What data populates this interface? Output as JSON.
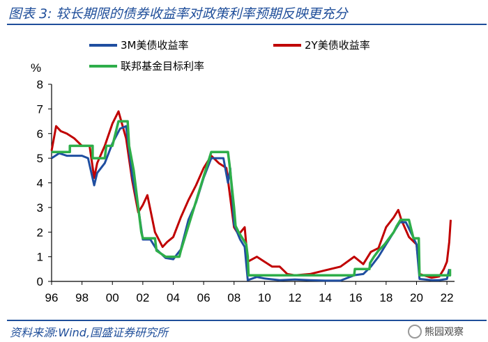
{
  "header": {
    "title": "图表 3:  较长期限的债券收益率对政策利率预期反映更充分"
  },
  "footer": {
    "source": "资料来源:Wind,国盛证券研究所",
    "watermark": "熊园观察"
  },
  "colors": {
    "series_3m": "#1f4ea0",
    "series_2y": "#c00000",
    "series_ff": "#2eae4a",
    "title": "#1f4e9a"
  },
  "chart_data": {
    "type": "line",
    "ylabel": "%",
    "ylim": [
      0,
      8
    ],
    "yticks": [
      "0",
      "1",
      "2",
      "3",
      "4",
      "5",
      "6",
      "7",
      "8"
    ],
    "xlim": [
      1996,
      2022.5
    ],
    "xticks": [
      "96",
      "98",
      "00",
      "02",
      "04",
      "06",
      "08",
      "10",
      "12",
      "14",
      "16",
      "18",
      "20",
      "22"
    ],
    "legend": [
      "3M美债收益率",
      "2Y美债收益率",
      "联邦基金目标利率"
    ],
    "legend_position": "top",
    "series": [
      {
        "name": "3M美债收益率",
        "points": [
          [
            1996,
            5.0
          ],
          [
            1996.5,
            5.2
          ],
          [
            1997,
            5.1
          ],
          [
            1997.5,
            5.1
          ],
          [
            1998,
            5.1
          ],
          [
            1998.4,
            5.0
          ],
          [
            1998.8,
            3.9
          ],
          [
            1999,
            4.4
          ],
          [
            1999.5,
            4.8
          ],
          [
            2000,
            5.6
          ],
          [
            2000.5,
            6.2
          ],
          [
            2000.9,
            6.3
          ],
          [
            2001.3,
            4.3
          ],
          [
            2001.7,
            3.0
          ],
          [
            2002,
            1.7
          ],
          [
            2002.5,
            1.7
          ],
          [
            2002.9,
            1.3
          ],
          [
            2003.5,
            0.95
          ],
          [
            2004,
            0.9
          ],
          [
            2004.5,
            1.3
          ],
          [
            2005,
            2.5
          ],
          [
            2005.5,
            3.2
          ],
          [
            2006,
            4.2
          ],
          [
            2006.5,
            5.0
          ],
          [
            2007,
            5.0
          ],
          [
            2007.3,
            5.0
          ],
          [
            2007.6,
            4.0
          ],
          [
            2007.75,
            4.6
          ],
          [
            2008,
            2.3
          ],
          [
            2008.4,
            1.7
          ],
          [
            2008.7,
            1.4
          ],
          [
            2008.9,
            0.05
          ],
          [
            2009.5,
            0.18
          ],
          [
            2010,
            0.12
          ],
          [
            2011,
            0.05
          ],
          [
            2012,
            0.08
          ],
          [
            2013,
            0.05
          ],
          [
            2014,
            0.03
          ],
          [
            2015,
            0.03
          ],
          [
            2015.9,
            0.25
          ],
          [
            2016.5,
            0.3
          ],
          [
            2017,
            0.6
          ],
          [
            2017.5,
            1.0
          ],
          [
            2018,
            1.5
          ],
          [
            2018.5,
            2.0
          ],
          [
            2018.9,
            2.4
          ],
          [
            2019.3,
            2.4
          ],
          [
            2019.7,
            1.9
          ],
          [
            2020,
            1.5
          ],
          [
            2020.2,
            0.1
          ],
          [
            2021,
            0.05
          ],
          [
            2021.5,
            0.05
          ],
          [
            2022,
            0.1
          ],
          [
            2022.15,
            0.5
          ]
        ]
      },
      {
        "name": "2Y美债收益率",
        "points": [
          [
            1996,
            5.3
          ],
          [
            1996.3,
            6.3
          ],
          [
            1996.6,
            6.1
          ],
          [
            1997,
            6.0
          ],
          [
            1997.5,
            5.8
          ],
          [
            1998,
            5.5
          ],
          [
            1998.5,
            5.5
          ],
          [
            1998.8,
            4.2
          ],
          [
            1999,
            4.8
          ],
          [
            1999.5,
            5.5
          ],
          [
            2000,
            6.4
          ],
          [
            2000.4,
            6.9
          ],
          [
            2000.9,
            5.8
          ],
          [
            2001.3,
            4.1
          ],
          [
            2001.7,
            2.8
          ],
          [
            2002,
            3.1
          ],
          [
            2002.3,
            3.5
          ],
          [
            2002.8,
            2.0
          ],
          [
            2003.3,
            1.4
          ],
          [
            2003.6,
            1.6
          ],
          [
            2004,
            1.8
          ],
          [
            2004.5,
            2.6
          ],
          [
            2005,
            3.3
          ],
          [
            2005.5,
            3.9
          ],
          [
            2006,
            4.6
          ],
          [
            2006.5,
            5.1
          ],
          [
            2007,
            4.8
          ],
          [
            2007.5,
            4.6
          ],
          [
            2008,
            2.2
          ],
          [
            2008.3,
            1.9
          ],
          [
            2008.7,
            2.2
          ],
          [
            2008.9,
            0.8
          ],
          [
            2009.5,
            1.0
          ],
          [
            2010,
            0.8
          ],
          [
            2010.5,
            0.6
          ],
          [
            2011,
            0.6
          ],
          [
            2011.5,
            0.3
          ],
          [
            2012,
            0.25
          ],
          [
            2013,
            0.3
          ],
          [
            2014,
            0.45
          ],
          [
            2015,
            0.6
          ],
          [
            2015.9,
            1.0
          ],
          [
            2016.5,
            0.7
          ],
          [
            2017,
            1.2
          ],
          [
            2017.5,
            1.35
          ],
          [
            2018,
            2.2
          ],
          [
            2018.5,
            2.6
          ],
          [
            2018.8,
            2.9
          ],
          [
            2019,
            2.5
          ],
          [
            2019.5,
            1.8
          ],
          [
            2020,
            1.5
          ],
          [
            2020.2,
            0.3
          ],
          [
            2021,
            0.15
          ],
          [
            2021.5,
            0.2
          ],
          [
            2021.8,
            0.5
          ],
          [
            2022,
            0.8
          ],
          [
            2022.15,
            1.6
          ],
          [
            2022.25,
            2.5
          ]
        ]
      },
      {
        "name": "联邦基金目标利率",
        "points": [
          [
            1996,
            5.25
          ],
          [
            1997.2,
            5.25
          ],
          [
            1997.2,
            5.5
          ],
          [
            1998.7,
            5.5
          ],
          [
            1998.7,
            5.0
          ],
          [
            1999.5,
            5.0
          ],
          [
            1999.6,
            5.5
          ],
          [
            2000,
            5.5
          ],
          [
            2000.2,
            6.0
          ],
          [
            2000.4,
            6.5
          ],
          [
            2001,
            6.5
          ],
          [
            2001.1,
            5.5
          ],
          [
            2001.4,
            4.5
          ],
          [
            2001.7,
            3.0
          ],
          [
            2001.9,
            2.0
          ],
          [
            2002,
            1.75
          ],
          [
            2002.8,
            1.75
          ],
          [
            2002.9,
            1.25
          ],
          [
            2003.5,
            1.0
          ],
          [
            2004.4,
            1.0
          ],
          [
            2004.5,
            1.25
          ],
          [
            2005,
            2.25
          ],
          [
            2005.5,
            3.25
          ],
          [
            2006,
            4.25
          ],
          [
            2006.5,
            5.25
          ],
          [
            2007.6,
            5.25
          ],
          [
            2007.7,
            4.75
          ],
          [
            2008,
            3.0
          ],
          [
            2008.1,
            2.25
          ],
          [
            2008.3,
            2.0
          ],
          [
            2008.8,
            1.5
          ],
          [
            2008.9,
            1.0
          ],
          [
            2008.95,
            0.25
          ],
          [
            2015.9,
            0.25
          ],
          [
            2015.95,
            0.5
          ],
          [
            2016.9,
            0.5
          ],
          [
            2016.95,
            0.75
          ],
          [
            2017.2,
            1.0
          ],
          [
            2017.5,
            1.25
          ],
          [
            2017.9,
            1.5
          ],
          [
            2018.2,
            1.75
          ],
          [
            2018.5,
            2.0
          ],
          [
            2018.7,
            2.25
          ],
          [
            2018.95,
            2.5
          ],
          [
            2019.5,
            2.5
          ],
          [
            2019.6,
            2.25
          ],
          [
            2019.7,
            2.0
          ],
          [
            2019.8,
            1.75
          ],
          [
            2020.15,
            1.75
          ],
          [
            2020.2,
            0.25
          ],
          [
            2022.2,
            0.25
          ],
          [
            2022.2,
            0.5
          ]
        ]
      }
    ]
  }
}
